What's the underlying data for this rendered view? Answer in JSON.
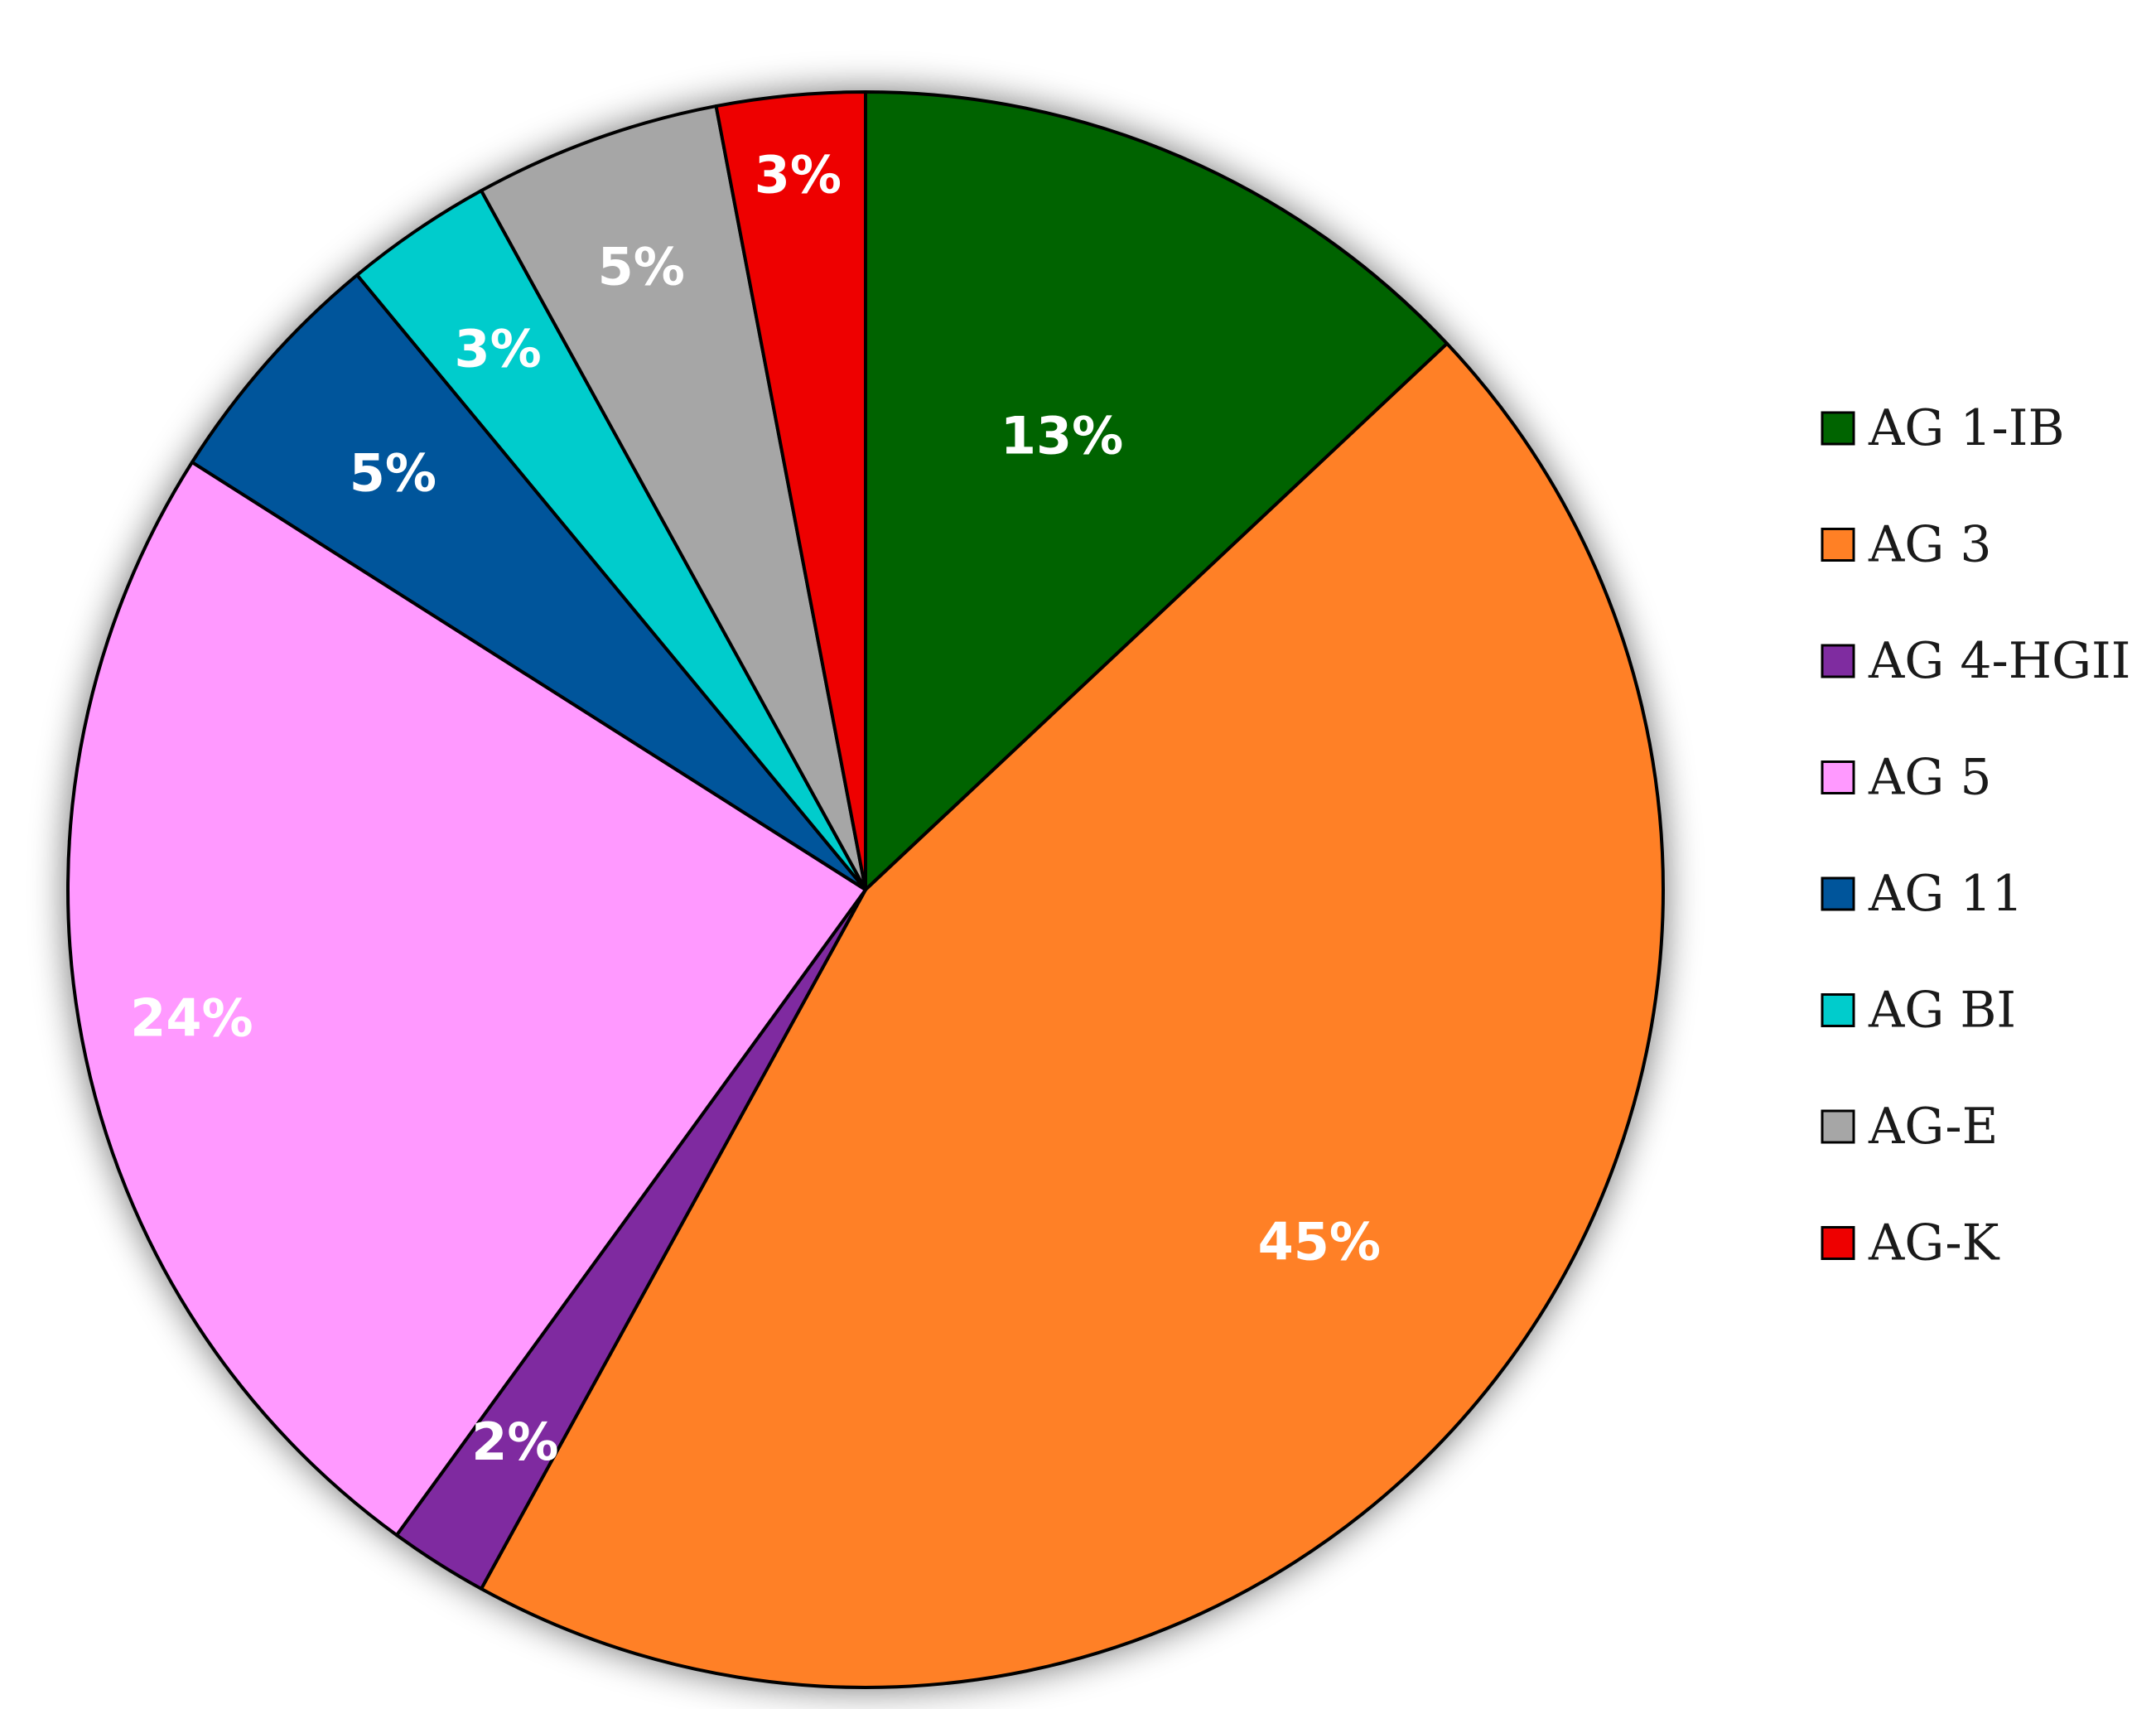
{
  "chart_data": {
    "type": "pie",
    "title": "",
    "categories": [
      "AG 1-IB",
      "AG 3",
      "AG 4-HGII",
      "AG 5",
      "AG 11",
      "AG BI",
      "AG-E",
      "AG-K"
    ],
    "values": [
      13,
      45,
      2,
      24,
      5,
      3,
      5,
      3
    ],
    "value_labels": [
      "13%",
      "45%",
      "2%",
      "24%",
      "5%",
      "3%",
      "5%",
      "3%"
    ],
    "colors": [
      "#006400",
      "#FF8025",
      "#7F2CA0",
      "#FF99FF",
      "#00559B",
      "#00CCCC",
      "#A6A6A6",
      "#EE0000"
    ],
    "start_angle": "12 o'clock",
    "direction": "clockwise",
    "legend": {
      "placement": "right"
    }
  }
}
